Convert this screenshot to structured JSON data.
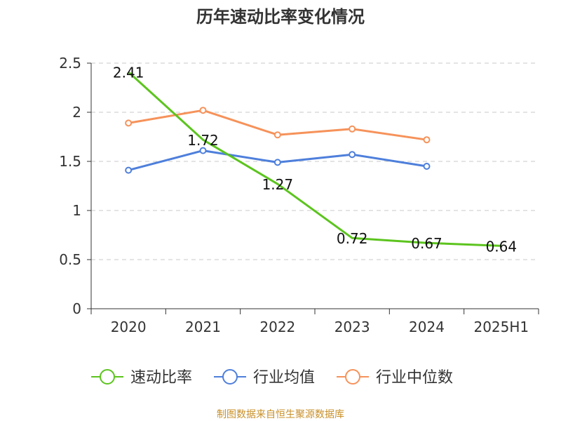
{
  "chart_data": {
    "type": "line",
    "title": "历年速动比率变化情况",
    "xlabel": "",
    "ylabel": "",
    "categories": [
      "2020",
      "2021",
      "2022",
      "2023",
      "2024",
      "2025H1"
    ],
    "ylim": [
      0,
      2.5
    ],
    "yticks": [
      "0",
      "0.5",
      "1",
      "1.5",
      "2",
      "2.5"
    ],
    "ytick_values": [
      0,
      0.5,
      1,
      1.5,
      2,
      2.5
    ],
    "grid": true,
    "legend_position": "bottom",
    "series": [
      {
        "name": "速动比率",
        "color": "#5cc41e",
        "show_markers": false,
        "show_labels": true,
        "values": [
          2.41,
          1.72,
          1.27,
          0.72,
          0.67,
          0.64
        ],
        "labels": [
          "2.41",
          "1.72",
          "1.27",
          "0.72",
          "0.67",
          "0.64"
        ]
      },
      {
        "name": "行业均值",
        "color": "#4e7fdb",
        "show_markers": true,
        "show_labels": false,
        "values": [
          1.41,
          1.61,
          1.49,
          1.57,
          1.45,
          null
        ]
      },
      {
        "name": "行业中位数",
        "color": "#f6925a",
        "show_markers": true,
        "show_labels": false,
        "values": [
          1.89,
          2.02,
          1.77,
          1.83,
          1.72,
          null
        ]
      }
    ]
  },
  "source": "制图数据来自恒生聚源数据库"
}
